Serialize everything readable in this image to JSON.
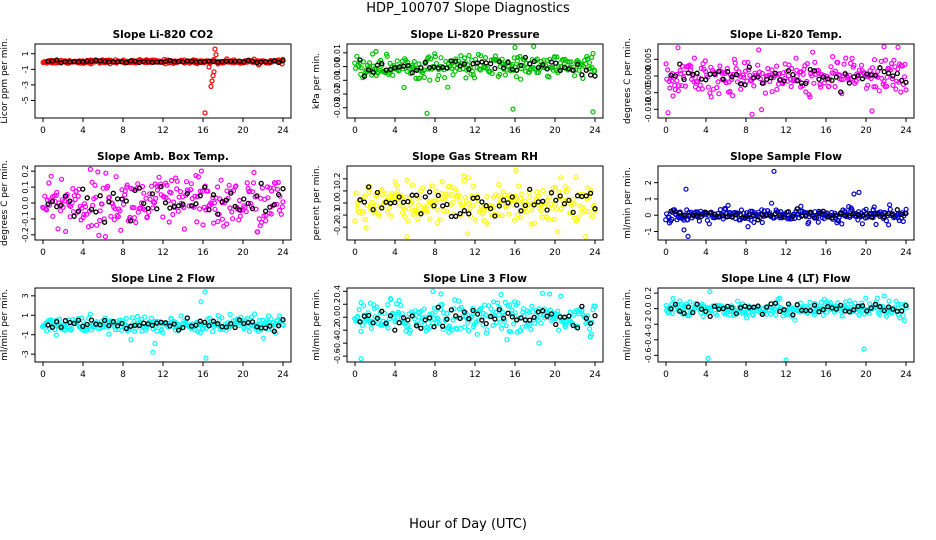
{
  "page": {
    "title": "HDP_100707  Slope Diagnostics",
    "x_axis_title": "Hour of Day (UTC)"
  },
  "chart_data": [
    {
      "type": "scatter",
      "title": "Slope Li-820 CO2",
      "ylabel": "Licor ppm per min.",
      "xlim": [
        0,
        24
      ],
      "ylim": [
        -7,
        2
      ],
      "xticks": [
        "0",
        "4",
        "8",
        "12",
        "16",
        "20",
        "24"
      ],
      "yticks": [
        -5,
        -3,
        -1,
        1
      ],
      "ytick_labels": [
        "-5",
        "-3",
        "-1",
        "1"
      ],
      "color": "#ff0000",
      "noise_sd": 0.12,
      "spikes": [
        [
          16.2,
          -6.6
        ],
        [
          16.8,
          -3.2
        ],
        [
          16.9,
          -2.5
        ],
        [
          17.0,
          -1.8
        ],
        [
          17.1,
          -1.3
        ],
        [
          17.2,
          1.6
        ],
        [
          17.3,
          0.9
        ],
        [
          16.6,
          -0.7
        ],
        [
          17.5,
          -0.3
        ]
      ]
    },
    {
      "type": "scatter",
      "title": "Slope Li-820 Pressure",
      "ylabel": "kPa per min.",
      "xlim": [
        0,
        24
      ],
      "ylim": [
        -0.036,
        0.015
      ],
      "xticks": [
        "0",
        "4",
        "8",
        "12",
        "16",
        "20",
        "24"
      ],
      "yticks": [
        -0.03,
        -0.02,
        -0.01,
        0.0,
        0.01
      ],
      "ytick_labels": [
        "-0.03",
        "-0.02",
        "-0.01",
        "0.00",
        "0.01"
      ],
      "color": "#00c000",
      "noise_sd": 0.0045,
      "spikes": [
        [
          7.2,
          -0.034
        ],
        [
          15.8,
          -0.031
        ],
        [
          23.8,
          -0.033
        ],
        [
          2.1,
          0.011
        ],
        [
          16.0,
          0.014
        ]
      ]
    },
    {
      "type": "scatter",
      "title": "Slope Li-820 Temp.",
      "ylabel": "degrees C per min.",
      "xlim": [
        0,
        24
      ],
      "ylim": [
        -0.012,
        0.009
      ],
      "xticks": [
        "0",
        "4",
        "8",
        "12",
        "16",
        "20",
        "24"
      ],
      "yticks": [
        -0.01,
        -0.005,
        0.0,
        0.005
      ],
      "ytick_labels": [
        "-0.010",
        "-0.005",
        "0.000",
        "0.005"
      ],
      "color": "#ff00ff",
      "noise_sd": 0.0028,
      "spikes": [
        [
          0.2,
          -0.011
        ],
        [
          1.2,
          0.0085
        ],
        [
          21.8,
          0.0088
        ],
        [
          23.2,
          0.0086
        ],
        [
          8.6,
          -0.0115
        ],
        [
          20.6,
          -0.0105
        ]
      ]
    },
    {
      "type": "scatter",
      "title": "Slope Amb. Box Temp.",
      "ylabel": "degrees C per min.",
      "xlim": [
        0,
        24
      ],
      "ylim": [
        -0.22,
        0.22
      ],
      "xticks": [
        "0",
        "4",
        "8",
        "12",
        "16",
        "20",
        "24"
      ],
      "yticks": [
        -0.2,
        -0.1,
        0.0,
        0.1,
        0.2
      ],
      "ytick_labels": [
        "-0.2",
        "-0.1",
        "0.0",
        "0.1",
        "0.2"
      ],
      "color": "#ff00ff",
      "noise_sd": 0.09,
      "spikes": []
    },
    {
      "type": "scatter",
      "title": "Slope Gas Stream RH",
      "ylabel": "percent per min.",
      "xlim": [
        0,
        24
      ],
      "ylim": [
        -0.29,
        0.29
      ],
      "xticks": [
        "0",
        "4",
        "8",
        "12",
        "16",
        "20",
        "24"
      ],
      "yticks": [
        -0.2,
        -0.1,
        0.0,
        0.1,
        0.2
      ],
      "ytick_labels": [
        "-0.2",
        "-0.1",
        "0.0",
        "0.1",
        "0.2"
      ],
      "color": "#ffff00",
      "noise_sd": 0.085,
      "spikes": [
        [
          16.1,
          0.27
        ],
        [
          5.2,
          -0.28
        ]
      ]
    },
    {
      "type": "scatter",
      "title": "Slope Sample Flow",
      "ylabel": "ml/min per min.",
      "xlim": [
        0,
        24
      ],
      "ylim": [
        -1.4,
        2.9
      ],
      "xticks": [
        "0",
        "4",
        "8",
        "12",
        "16",
        "20",
        "24"
      ],
      "yticks": [
        -1,
        0,
        1,
        2
      ],
      "ytick_labels": [
        "-1",
        "0",
        "1",
        "2"
      ],
      "color": "#0000cc",
      "noise_sd": 0.22,
      "spikes": [
        [
          2.0,
          1.6
        ],
        [
          2.2,
          -1.3
        ],
        [
          10.8,
          2.7
        ],
        [
          18.8,
          1.3
        ],
        [
          19.3,
          1.4
        ],
        [
          1.8,
          -0.9
        ],
        [
          8.2,
          -0.7
        ]
      ]
    },
    {
      "type": "scatter",
      "title": "Slope Line 2 Flow",
      "ylabel": "ml/min per min.",
      "xlim": [
        0,
        24
      ],
      "ylim": [
        -3.6,
        3.6
      ],
      "xticks": [
        "0",
        "4",
        "8",
        "12",
        "16",
        "20",
        "24"
      ],
      "yticks": [
        -3,
        -1,
        1,
        3
      ],
      "ytick_labels": [
        "-3",
        "-1",
        "1",
        "3"
      ],
      "color": "#00ffff",
      "noise_sd": 0.45,
      "spikes": [
        [
          16.2,
          3.4
        ],
        [
          16.3,
          -3.4
        ],
        [
          11.0,
          -2.8
        ],
        [
          11.2,
          -1.9
        ],
        [
          8.8,
          -1.5
        ],
        [
          15.8,
          2.4
        ]
      ]
    },
    {
      "type": "scatter",
      "title": "Slope Line 3 Flow",
      "ylabel": "ml/min per min.",
      "xlim": [
        0,
        24
      ],
      "ylim": [
        -0.66,
        0.42
      ],
      "xticks": [
        "0",
        "4",
        "8",
        "12",
        "16",
        "20",
        "24"
      ],
      "yticks": [
        -0.6,
        -0.4,
        -0.2,
        0.0,
        0.2,
        0.4
      ],
      "ytick_labels": [
        "-0.6",
        "-0.4",
        "-0.2",
        "0.0",
        "0.2",
        "0.4"
      ],
      "color": "#00ffff",
      "noise_sd": 0.13,
      "spikes": [
        [
          0.6,
          -0.64
        ],
        [
          7.8,
          0.4
        ],
        [
          8.6,
          0.36
        ],
        [
          14.6,
          0.35
        ],
        [
          18.4,
          -0.4
        ]
      ]
    },
    {
      "type": "scatter",
      "title": "Slope Line 4 (LT) Flow",
      "ylabel": "ml/min per min.",
      "xlim": [
        0,
        24
      ],
      "ylim": [
        -0.66,
        0.24
      ],
      "xticks": [
        "0",
        "4",
        "8",
        "12",
        "16",
        "20",
        "24"
      ],
      "yticks": [
        -0.6,
        -0.4,
        -0.2,
        0.0,
        0.2
      ],
      "ytick_labels": [
        "-0.6",
        "-0.4",
        "-0.2",
        "0.0",
        "0.2"
      ],
      "color": "#00ffff",
      "noise_sd": 0.055,
      "spikes": [
        [
          4.2,
          -0.64
        ],
        [
          12.0,
          -0.66
        ],
        [
          19.8,
          -0.52
        ],
        [
          4.4,
          0.22
        ]
      ]
    }
  ]
}
